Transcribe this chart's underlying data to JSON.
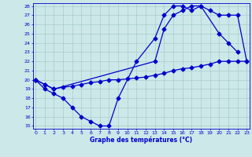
{
  "line1_x": [
    0,
    1,
    2,
    3,
    4,
    5,
    6,
    7,
    8,
    9,
    11,
    13,
    14,
    15,
    16,
    17,
    18,
    20,
    21,
    22
  ],
  "line1_y": [
    20.0,
    19.0,
    18.5,
    18.0,
    17.0,
    16.0,
    15.5,
    15.0,
    15.0,
    18.0,
    22.0,
    24.5,
    27.0,
    28.0,
    28.0,
    27.5,
    28.0,
    25.0,
    24.0,
    23.0
  ],
  "line2_x": [
    0,
    1,
    2,
    3,
    4,
    5,
    6,
    7,
    8,
    9,
    10,
    11,
    12,
    13,
    14,
    15,
    16,
    17,
    18,
    19,
    20,
    21,
    22,
    23
  ],
  "line2_y": [
    20.0,
    19.5,
    19.0,
    19.2,
    19.3,
    19.5,
    19.7,
    19.8,
    20.0,
    20.0,
    20.1,
    20.2,
    20.3,
    20.5,
    20.7,
    21.0,
    21.2,
    21.3,
    21.5,
    21.7,
    22.0,
    22.0,
    22.0,
    22.0
  ],
  "line3_x": [
    0,
    1,
    2,
    13,
    14,
    15,
    16,
    17,
    18,
    19,
    20,
    21,
    22,
    23
  ],
  "line3_y": [
    20.0,
    19.5,
    19.0,
    22.0,
    25.5,
    27.0,
    27.5,
    28.0,
    28.0,
    27.5,
    27.0,
    27.0,
    27.0,
    22.0
  ],
  "line_color": "#0000cc",
  "marker": "D",
  "markersize": 2.5,
  "xlim": [
    0,
    23
  ],
  "ylim": [
    15,
    28
  ],
  "yticks": [
    15,
    16,
    17,
    18,
    19,
    20,
    21,
    22,
    23,
    24,
    25,
    26,
    27,
    28
  ],
  "xticks": [
    0,
    1,
    2,
    3,
    4,
    5,
    6,
    7,
    8,
    9,
    10,
    11,
    12,
    13,
    14,
    15,
    16,
    17,
    18,
    19,
    20,
    21,
    22,
    23
  ],
  "xlabel": "Graphe des températures (°C)",
  "bg_color": "#cce8e8",
  "grid_color": "#aacccc",
  "tick_fontsize": 4.5,
  "xlabel_fontsize": 5.5
}
